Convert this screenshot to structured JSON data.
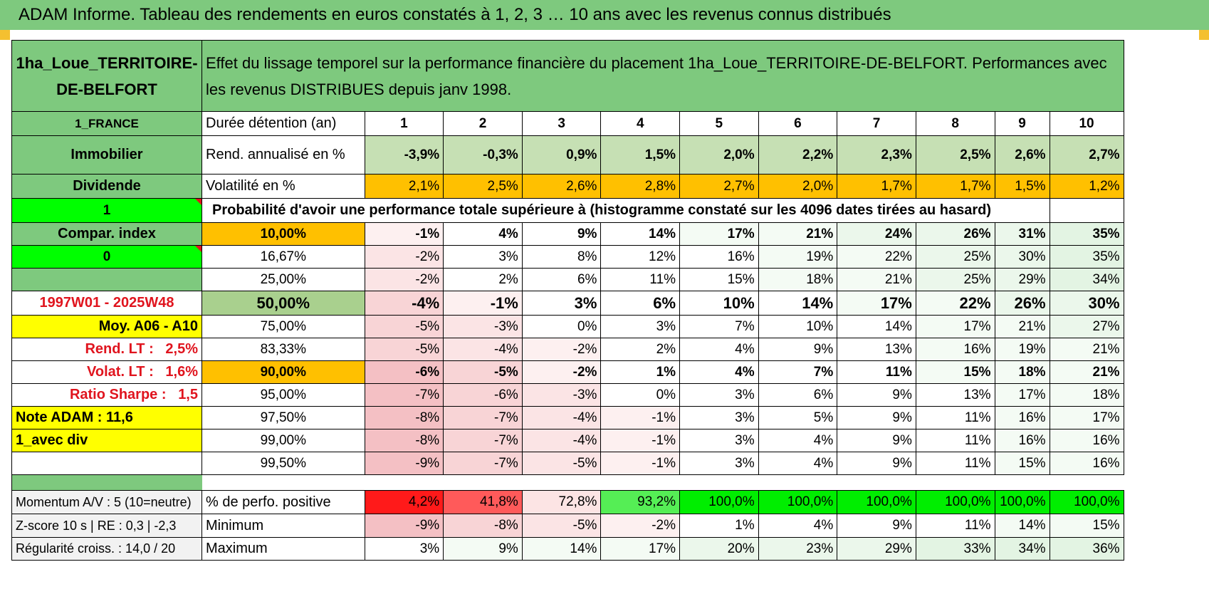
{
  "title": "ADAM Informe. Tableau des rendements en euros constatés à 1, 2, 3 … 10 ans avec les revenus connus distribués",
  "header": {
    "fund_name": "1ha_Loue_TERRITOIRE-DE-BELFORT",
    "description": "Effet du lissage temporel sur la performance financière du placement 1ha_Loue_TERRITOIRE-DE-BELFORT. Performances avec les revenus DISTRIBUES depuis janv 1998."
  },
  "left": {
    "country": "1_FRANCE",
    "asset_class": "Immobilier",
    "distribution": "Dividende",
    "flag_value": "1",
    "compar_index": "Compar. index",
    "index_value": "0",
    "period": "1997W01 - 2025W48",
    "moy": "Moy. A06 - A10",
    "rend_lt_label": "Rend. LT :",
    "rend_lt_value": "2,5%",
    "volat_lt_label": "Volat. LT :",
    "volat_lt_value": "1,6%",
    "sharpe_label": "Ratio Sharpe :",
    "sharpe_value": "1,5",
    "note_adam": "Note ADAM : 11,6",
    "avec_div": "1_avec div",
    "momentum": "Momentum A/V : 5 (10=neutre)",
    "zscore": "Z-score 10 s | RE : 0,3 | -2,3",
    "regularite": "Régularité croiss. : 14,0 / 20"
  },
  "rows": {
    "duree_label": "Durée détention (an)",
    "years": [
      "1",
      "2",
      "3",
      "4",
      "5",
      "6",
      "7",
      "8",
      "9",
      "10"
    ],
    "rend_label": "Rend. annualisé en %",
    "rend": [
      "-3,9%",
      "-0,3%",
      "0,9%",
      "1,5%",
      "2,0%",
      "2,2%",
      "2,3%",
      "2,5%",
      "2,6%",
      "2,7%"
    ],
    "vol_label": "Volatilité en %",
    "vol": [
      "2,1%",
      "2,5%",
      "2,6%",
      "2,8%",
      "2,7%",
      "2,0%",
      "1,7%",
      "1,7%",
      "1,5%",
      "1,2%"
    ],
    "proba_label": "Probabilité d'avoir une performance totale supérieure à (histogramme constaté sur les 4096 dates tirées au hasard)"
  },
  "percentiles": [
    {
      "p": "10,00%",
      "v": [
        "-1%",
        "4%",
        "9%",
        "14%",
        "17%",
        "21%",
        "24%",
        "26%",
        "31%",
        "35%"
      ]
    },
    {
      "p": "16,67%",
      "v": [
        "-2%",
        "3%",
        "8%",
        "12%",
        "16%",
        "19%",
        "22%",
        "25%",
        "30%",
        "35%"
      ]
    },
    {
      "p": "25,00%",
      "v": [
        "-2%",
        "2%",
        "6%",
        "11%",
        "15%",
        "18%",
        "21%",
        "25%",
        "29%",
        "34%"
      ]
    },
    {
      "p": "50,00%",
      "v": [
        "-4%",
        "-1%",
        "3%",
        "6%",
        "10%",
        "14%",
        "17%",
        "22%",
        "26%",
        "30%"
      ]
    },
    {
      "p": "75,00%",
      "v": [
        "-5%",
        "-3%",
        "0%",
        "3%",
        "7%",
        "10%",
        "14%",
        "17%",
        "21%",
        "27%"
      ]
    },
    {
      "p": "83,33%",
      "v": [
        "-5%",
        "-4%",
        "-2%",
        "2%",
        "4%",
        "9%",
        "13%",
        "16%",
        "19%",
        "21%"
      ]
    },
    {
      "p": "90,00%",
      "v": [
        "-6%",
        "-5%",
        "-2%",
        "1%",
        "4%",
        "7%",
        "11%",
        "15%",
        "18%",
        "21%"
      ]
    },
    {
      "p": "95,00%",
      "v": [
        "-7%",
        "-6%",
        "-3%",
        "0%",
        "3%",
        "6%",
        "9%",
        "13%",
        "17%",
        "18%"
      ]
    },
    {
      "p": "97,50%",
      "v": [
        "-8%",
        "-7%",
        "-4%",
        "-1%",
        "3%",
        "5%",
        "9%",
        "11%",
        "16%",
        "17%"
      ]
    },
    {
      "p": "99,00%",
      "v": [
        "-8%",
        "-7%",
        "-4%",
        "-1%",
        "3%",
        "4%",
        "9%",
        "11%",
        "16%",
        "16%"
      ]
    },
    {
      "p": "99,50%",
      "v": [
        "-9%",
        "-7%",
        "-5%",
        "-1%",
        "3%",
        "4%",
        "9%",
        "11%",
        "15%",
        "16%"
      ]
    }
  ],
  "bottom": {
    "positive_label": "% de perfo. positive",
    "positive": [
      "4,2%",
      "41,8%",
      "72,8%",
      "93,2%",
      "100,0%",
      "100,0%",
      "100,0%",
      "100,0%",
      "100,0%",
      "100,0%"
    ],
    "min_label": "Minimum",
    "min": [
      "-9%",
      "-8%",
      "-5%",
      "-2%",
      "1%",
      "4%",
      "9%",
      "11%",
      "14%",
      "15%"
    ],
    "max_label": "Maximum",
    "max": [
      "3%",
      "9%",
      "14%",
      "17%",
      "20%",
      "23%",
      "29%",
      "33%",
      "34%",
      "36%"
    ]
  },
  "colors": {
    "header_green": "#7ec97e",
    "orange": "#ffc000",
    "yellow": "#ffff00",
    "bright_green": "#00ff00",
    "red_text": "#e0141e"
  }
}
